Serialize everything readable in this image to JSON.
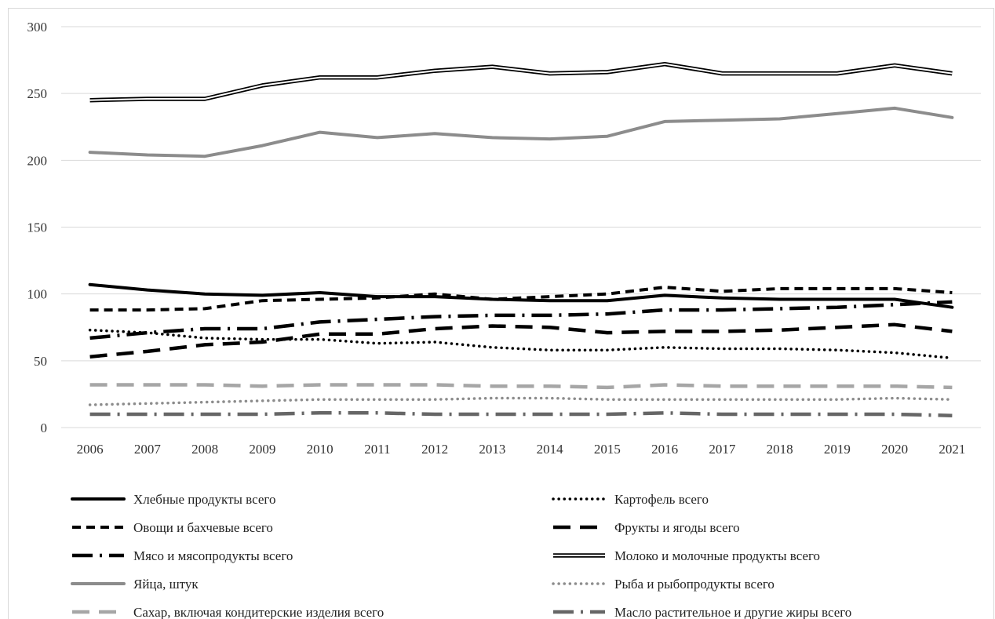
{
  "chart_data": {
    "type": "line",
    "title": "",
    "xlabel": "",
    "ylabel": "",
    "ylim": [
      0,
      300
    ],
    "yticks": [
      0,
      50,
      100,
      150,
      200,
      250,
      300
    ],
    "grid": "horizontal",
    "legend_position": "bottom",
    "categories": [
      "2006",
      "2007",
      "2008",
      "2009",
      "2010",
      "2011",
      "2012",
      "2013",
      "2014",
      "2015",
      "2016",
      "2017",
      "2018",
      "2019",
      "2020",
      "2021"
    ],
    "series": [
      {
        "name": "Хлебные продукты всего",
        "style": "solid",
        "color": "#000000",
        "values": [
          107,
          103,
          100,
          99,
          101,
          98,
          98,
          96,
          95,
          95,
          99,
          97,
          96,
          96,
          96,
          90
        ]
      },
      {
        "name": "Картофель всего",
        "style": "dotted",
        "color": "#000000",
        "values": [
          73,
          71,
          67,
          66,
          66,
          63,
          64,
          60,
          58,
          58,
          60,
          59,
          59,
          58,
          56,
          52
        ]
      },
      {
        "name": "Овощи и бахчевые всего",
        "style": "dashed",
        "color": "#000000",
        "values": [
          88,
          88,
          89,
          95,
          96,
          97,
          100,
          96,
          98,
          100,
          105,
          102,
          104,
          104,
          104,
          101
        ]
      },
      {
        "name": "Фрукты и ягоды всего",
        "style": "longdash",
        "color": "#000000",
        "values": [
          53,
          57,
          62,
          64,
          70,
          70,
          74,
          76,
          75,
          71,
          72,
          72,
          73,
          75,
          77,
          72
        ]
      },
      {
        "name": "Мясо и мясопродукты всего",
        "style": "dashdot",
        "color": "#000000",
        "values": [
          67,
          71,
          74,
          74,
          79,
          81,
          83,
          84,
          84,
          85,
          88,
          88,
          89,
          90,
          92,
          94
        ]
      },
      {
        "name": "Молоко и молочные продукты всего",
        "style": "double",
        "color": "#000000",
        "values": [
          245,
          246,
          246,
          256,
          262,
          262,
          267,
          270,
          265,
          266,
          272,
          265,
          265,
          265,
          271,
          265
        ]
      },
      {
        "name": "Яйца, штук",
        "style": "solid",
        "color": "#8c8c8c",
        "values": [
          206,
          204,
          203,
          211,
          221,
          217,
          220,
          217,
          216,
          218,
          229,
          230,
          231,
          235,
          239,
          232
        ]
      },
      {
        "name": "Рыба и рыбопродукты всего",
        "style": "dotted",
        "color": "#8c8c8c",
        "values": [
          17,
          18,
          19,
          20,
          21,
          21,
          21,
          22,
          22,
          21,
          21,
          21,
          21,
          21,
          22,
          21
        ]
      },
      {
        "name": "Сахар, включая кондитерские изделия всего",
        "style": "longdash",
        "color": "#a6a6a6",
        "values": [
          32,
          32,
          32,
          31,
          32,
          32,
          32,
          31,
          31,
          30,
          32,
          31,
          31,
          31,
          31,
          30
        ]
      },
      {
        "name": "Масло растительное и другие жиры всего",
        "style": "dashdot",
        "color": "#666666",
        "values": [
          10,
          10,
          10,
          10,
          11,
          11,
          10,
          10,
          10,
          10,
          11,
          10,
          10,
          10,
          10,
          9
        ]
      }
    ]
  }
}
